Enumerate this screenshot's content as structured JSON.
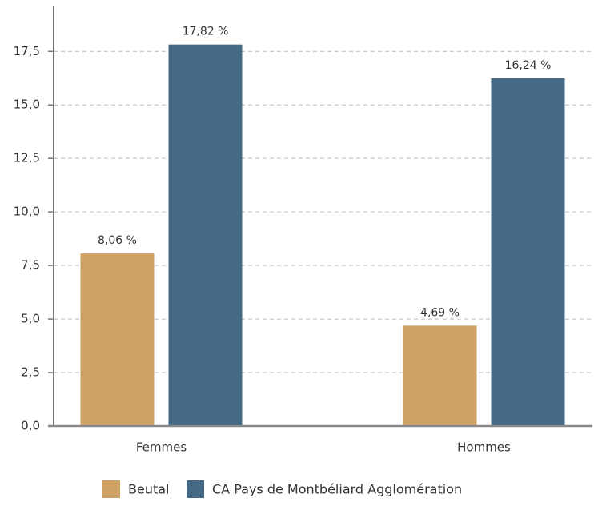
{
  "chart_data": {
    "type": "bar",
    "categories": [
      "Femmes",
      "Hommes"
    ],
    "series": [
      {
        "name": "Beutal",
        "color": "#cfa164",
        "values": [
          8.06,
          4.69
        ],
        "value_labels": [
          "8,06 %",
          "4,69 %"
        ]
      },
      {
        "name": "CA Pays de Montbéliard Agglomération",
        "color": "#446a85",
        "values": [
          17.82,
          16.24
        ],
        "value_labels": [
          "17,82 %",
          "16,24 %"
        ]
      }
    ],
    "ylim": [
      0,
      19.6
    ],
    "yticks": [
      {
        "value": 0,
        "label": "0,0"
      },
      {
        "value": 2.5,
        "label": "2,5"
      },
      {
        "value": 5,
        "label": "5,0"
      },
      {
        "value": 7.5,
        "label": "7,5"
      },
      {
        "value": 10,
        "label": "10,0"
      },
      {
        "value": 12.5,
        "label": "12,5"
      },
      {
        "value": 15,
        "label": "15,0"
      },
      {
        "value": 17.5,
        "label": "17,5"
      }
    ],
    "grid": true,
    "legend": "bottom"
  }
}
